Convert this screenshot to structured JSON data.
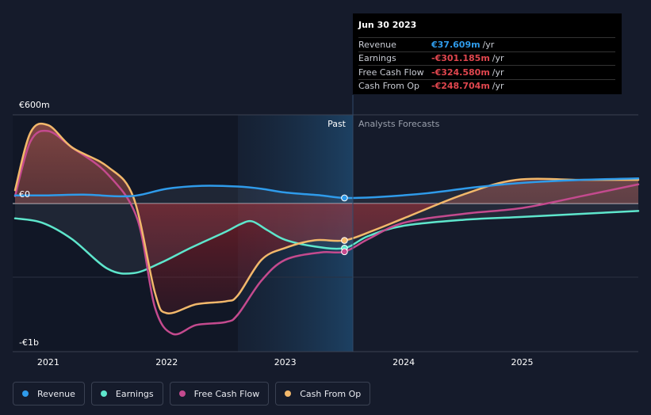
{
  "chart_data": {
    "type": "line",
    "title": "",
    "currency": "€",
    "y_axis_labels": [
      {
        "value": 600,
        "label": "€600m"
      },
      {
        "value": 0,
        "label": "€0"
      },
      {
        "value": -1000,
        "label": "-€1b"
      }
    ],
    "ylim": [
      -1000,
      600
    ],
    "xlim": [
      2020.7,
      2025.98
    ],
    "x_ticks": [
      {
        "value": 2021,
        "label": "2021"
      },
      {
        "value": 2022,
        "label": "2022"
      },
      {
        "value": 2023,
        "label": "2023"
      },
      {
        "value": 2024,
        "label": "2024"
      },
      {
        "value": 2025,
        "label": "2025"
      }
    ],
    "past_label": "Past",
    "forecast_label": "Analysts Forecasts",
    "past_boundary": 2023.5,
    "shaded_start": 2022.5,
    "series": [
      {
        "name": "Revenue",
        "color": "#2f9bea",
        "points": [
          [
            2020.72,
            55
          ],
          [
            2021.0,
            55
          ],
          [
            2021.3,
            60
          ],
          [
            2021.7,
            50
          ],
          [
            2022.0,
            100
          ],
          [
            2022.3,
            120
          ],
          [
            2022.6,
            115
          ],
          [
            2022.8,
            100
          ],
          [
            2023.0,
            75
          ],
          [
            2023.3,
            55
          ],
          [
            2023.5,
            38
          ],
          [
            2023.8,
            45
          ],
          [
            2024.2,
            70
          ],
          [
            2024.6,
            110
          ],
          [
            2025.0,
            140
          ],
          [
            2025.5,
            160
          ],
          [
            2025.98,
            170
          ]
        ]
      },
      {
        "name": "Earnings",
        "color": "#5ee6cc",
        "points": [
          [
            2020.72,
            -100
          ],
          [
            2020.95,
            -130
          ],
          [
            2021.2,
            -240
          ],
          [
            2021.5,
            -440
          ],
          [
            2021.72,
            -470
          ],
          [
            2021.95,
            -400
          ],
          [
            2022.2,
            -300
          ],
          [
            2022.5,
            -190
          ],
          [
            2022.62,
            -140
          ],
          [
            2022.72,
            -120
          ],
          [
            2022.85,
            -180
          ],
          [
            2023.0,
            -245
          ],
          [
            2023.25,
            -290
          ],
          [
            2023.5,
            -301
          ],
          [
            2023.7,
            -220
          ],
          [
            2024.0,
            -150
          ],
          [
            2024.5,
            -110
          ],
          [
            2025.0,
            -90
          ],
          [
            2025.98,
            -50
          ]
        ]
      },
      {
        "name": "Free Cash Flow",
        "color": "#c44a8e",
        "points": [
          [
            2020.72,
            50
          ],
          [
            2020.85,
            420
          ],
          [
            2021.0,
            490
          ],
          [
            2021.2,
            380
          ],
          [
            2021.5,
            200
          ],
          [
            2021.75,
            -100
          ],
          [
            2021.9,
            -700
          ],
          [
            2022.05,
            -880
          ],
          [
            2022.25,
            -820
          ],
          [
            2022.5,
            -800
          ],
          [
            2022.6,
            -750
          ],
          [
            2022.8,
            -520
          ],
          [
            2023.0,
            -380
          ],
          [
            2023.3,
            -330
          ],
          [
            2023.5,
            -325
          ],
          [
            2023.7,
            -240
          ],
          [
            2024.0,
            -130
          ],
          [
            2024.5,
            -70
          ],
          [
            2025.0,
            -30
          ],
          [
            2025.5,
            50
          ],
          [
            2025.98,
            130
          ]
        ]
      },
      {
        "name": "Cash From Op",
        "color": "#f2b86b",
        "points": [
          [
            2020.72,
            90
          ],
          [
            2020.85,
            480
          ],
          [
            2021.0,
            530
          ],
          [
            2021.2,
            380
          ],
          [
            2021.5,
            250
          ],
          [
            2021.72,
            40
          ],
          [
            2021.9,
            -600
          ],
          [
            2022.0,
            -740
          ],
          [
            2022.25,
            -680
          ],
          [
            2022.5,
            -660
          ],
          [
            2022.6,
            -620
          ],
          [
            2022.8,
            -380
          ],
          [
            2023.0,
            -300
          ],
          [
            2023.25,
            -248
          ],
          [
            2023.5,
            -249
          ],
          [
            2023.75,
            -180
          ],
          [
            2024.0,
            -100
          ],
          [
            2024.5,
            60
          ],
          [
            2024.95,
            160
          ],
          [
            2025.5,
            160
          ],
          [
            2025.98,
            160
          ]
        ]
      }
    ],
    "highlight_x": 2023.5
  },
  "tooltip": {
    "date": "Jun 30 2023",
    "rows": [
      {
        "label": "Revenue",
        "value": "€37.609m",
        "unit": "/yr",
        "color": "#2f9bea"
      },
      {
        "label": "Earnings",
        "value": "-€301.185m",
        "unit": "/yr",
        "color": "#e0464e"
      },
      {
        "label": "Free Cash Flow",
        "value": "-€324.580m",
        "unit": "/yr",
        "color": "#e0464e"
      },
      {
        "label": "Cash From Op",
        "value": "-€248.704m",
        "unit": "/yr",
        "color": "#e0464e"
      }
    ]
  },
  "legend": [
    {
      "label": "Revenue",
      "color": "#2f9bea"
    },
    {
      "label": "Earnings",
      "color": "#5ee6cc"
    },
    {
      "label": "Free Cash Flow",
      "color": "#c44a8e"
    },
    {
      "label": "Cash From Op",
      "color": "#f2b86b"
    }
  ]
}
